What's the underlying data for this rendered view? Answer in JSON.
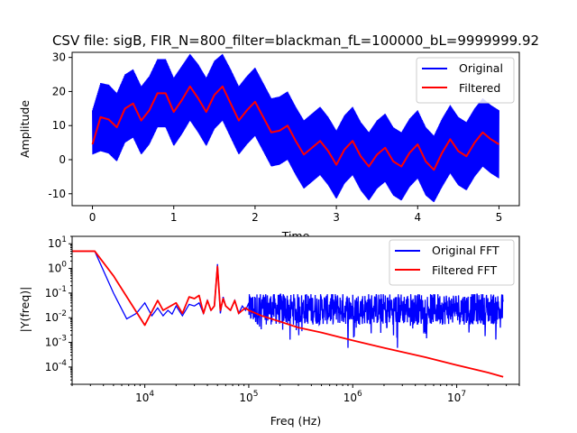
{
  "figure": {
    "title": "CSV file: sigB, FIR_N=800_filter=blackman_fL=100000_bL=9999999.92"
  },
  "chart_data": [
    {
      "type": "line",
      "xlabel": "Time",
      "ylabel": "Amplitude",
      "xlim": [
        -0.25,
        5.25
      ],
      "ylim": [
        -13.5,
        31.5
      ],
      "xticks": [
        0,
        1,
        2,
        3,
        4,
        5
      ],
      "yticks": [
        -10,
        0,
        10,
        20,
        30
      ],
      "grid": false,
      "legend_position": "upper right",
      "legend": [
        "Original",
        "Filtered"
      ],
      "colors": {
        "Original": "#0000ff",
        "Filtered": "#ff0000"
      },
      "x": [
        0.0,
        0.1,
        0.2,
        0.3,
        0.4,
        0.5,
        0.6,
        0.7,
        0.8,
        0.9,
        1.0,
        1.1,
        1.2,
        1.3,
        1.4,
        1.5,
        1.6,
        1.7,
        1.8,
        1.9,
        2.0,
        2.1,
        2.2,
        2.3,
        2.4,
        2.5,
        2.6,
        2.7,
        2.8,
        2.9,
        3.0,
        3.1,
        3.2,
        3.3,
        3.4,
        3.5,
        3.6,
        3.7,
        3.8,
        3.9,
        4.0,
        4.1,
        4.2,
        4.3,
        4.4,
        4.5,
        4.6,
        4.7,
        4.8,
        4.9,
        5.0
      ],
      "series": [
        {
          "name": "Original",
          "values": [
            4.5,
            12.5,
            11.8,
            9.5,
            15.0,
            16.5,
            11.5,
            14.5,
            19.5,
            19.5,
            14.0,
            17.5,
            21.5,
            18.0,
            14.0,
            19.0,
            21.5,
            16.5,
            11.5,
            14.5,
            17.0,
            12.5,
            8.0,
            8.5,
            10.0,
            5.5,
            1.5,
            3.5,
            5.5,
            2.5,
            -1.5,
            3.0,
            5.5,
            1.0,
            -2.0,
            1.5,
            3.5,
            -0.5,
            -2.0,
            2.0,
            4.5,
            -0.5,
            -3.0,
            2.0,
            6.0,
            2.5,
            1.0,
            5.0,
            8.0,
            6.0,
            4.5
          ],
          "envelope": {
            "upper": [
              14.5,
              22.5,
              22.0,
              19.5,
              25.0,
              26.5,
              21.5,
              24.5,
              29.5,
              29.5,
              24.0,
              27.5,
              31.0,
              28.0,
              24.0,
              29.0,
              31.0,
              26.5,
              21.5,
              24.5,
              27.0,
              22.5,
              18.0,
              18.5,
              20.0,
              15.5,
              11.5,
              13.5,
              15.5,
              12.5,
              8.5,
              13.0,
              15.5,
              11.0,
              8.0,
              11.5,
              13.5,
              9.5,
              8.0,
              12.0,
              14.5,
              9.5,
              7.0,
              12.0,
              16.0,
              12.5,
              11.0,
              15.0,
              18.0,
              16.0,
              14.5
            ],
            "lower": [
              1.5,
              2.5,
              1.8,
              -0.5,
              5.0,
              6.5,
              1.5,
              4.5,
              9.5,
              9.5,
              4.0,
              7.5,
              11.5,
              8.0,
              4.0,
              9.0,
              11.5,
              6.5,
              1.5,
              4.5,
              7.0,
              2.5,
              -2.0,
              -1.5,
              0.0,
              -4.5,
              -8.5,
              -6.5,
              -4.5,
              -7.5,
              -11.5,
              -7.0,
              -4.5,
              -9.0,
              -12.0,
              -8.5,
              -6.5,
              -10.5,
              -12.0,
              -8.0,
              -5.5,
              -10.5,
              -12.5,
              -8.0,
              -4.0,
              -7.5,
              -9.0,
              -5.0,
              -2.0,
              -4.0,
              -5.5
            ]
          }
        },
        {
          "name": "Filtered",
          "values": [
            4.5,
            12.5,
            11.8,
            9.5,
            15.0,
            16.5,
            11.5,
            14.5,
            19.5,
            19.5,
            14.0,
            17.5,
            21.5,
            18.0,
            14.0,
            19.0,
            21.5,
            16.5,
            11.5,
            14.5,
            17.0,
            12.5,
            8.0,
            8.5,
            10.0,
            5.5,
            1.5,
            3.5,
            5.5,
            2.5,
            -1.5,
            3.0,
            5.5,
            1.0,
            -2.0,
            1.5,
            3.5,
            -0.5,
            -2.0,
            2.0,
            4.5,
            -0.5,
            -3.0,
            2.0,
            6.0,
            2.5,
            1.0,
            5.0,
            8.0,
            6.0,
            4.5
          ]
        }
      ]
    },
    {
      "type": "line",
      "xlabel": "Freq (Hz)",
      "ylabel": "|Y(freq)|",
      "xscale": "log",
      "yscale": "log",
      "xlim": [
        2000,
        40000000
      ],
      "ylim": [
        2e-05,
        20
      ],
      "xtick_labels": [
        "10^4",
        "10^5",
        "10^6",
        "10^7"
      ],
      "ytick_labels": [
        "10^1",
        "10^0",
        "10^-1",
        "10^-2",
        "10^-3",
        "10^-4"
      ],
      "grid": false,
      "legend_position": "upper right",
      "legend": [
        "Original FFT",
        "Filtered FFT"
      ],
      "colors": {
        "Original FFT": "#0000ff",
        "Filtered FFT": "#ff0000"
      },
      "series": [
        {
          "name": "Original FFT",
          "x": [
            2000,
            3300,
            5000,
            6700,
            8300,
            10000,
            11700,
            13300,
            15000,
            16700,
            18300,
            20000,
            23000,
            26700,
            30000,
            33300,
            36700,
            40000,
            43300,
            46700,
            50000,
            53300,
            56700,
            60000,
            66700,
            73300,
            80000,
            86700,
            93300,
            100000
          ],
          "values": [
            5,
            5,
            0.1,
            0.009,
            0.015,
            0.04,
            0.012,
            0.025,
            0.012,
            0.02,
            0.014,
            0.03,
            0.012,
            0.035,
            0.03,
            0.04,
            0.015,
            0.05,
            0.02,
            0.03,
            1.5,
            0.015,
            0.07,
            0.03,
            0.02,
            0.05,
            0.015,
            0.03,
            0.02,
            0.04
          ],
          "noise_band": {
            "x_range": [
              100000,
              28000000
            ],
            "median": 0.02,
            "peak": 0.09,
            "dips": [
              0.0002,
              0.0006,
              0.0004
            ]
          }
        },
        {
          "name": "Filtered FFT",
          "x": [
            2000,
            3300,
            5000,
            10000,
            13300,
            15000,
            20000,
            23000,
            26700,
            30000,
            33300,
            36700,
            40000,
            43300,
            46700,
            50000,
            53300,
            56700,
            60000,
            66700,
            73300,
            80000,
            86700,
            93300,
            100000,
            133000,
            200000,
            300000,
            500000,
            1000000,
            2000000,
            5000000,
            10000000,
            20000000,
            28000000
          ],
          "values": [
            5,
            5,
            0.5,
            0.005,
            0.05,
            0.02,
            0.04,
            0.015,
            0.07,
            0.06,
            0.08,
            0.015,
            0.05,
            0.02,
            0.03,
            1.2,
            0.02,
            0.06,
            0.03,
            0.02,
            0.05,
            0.015,
            0.02,
            0.025,
            0.02,
            0.012,
            0.007,
            0.004,
            0.0025,
            0.0012,
            0.0006,
            0.00025,
            0.00012,
            6e-05,
            4e-05
          ]
        }
      ]
    }
  ]
}
